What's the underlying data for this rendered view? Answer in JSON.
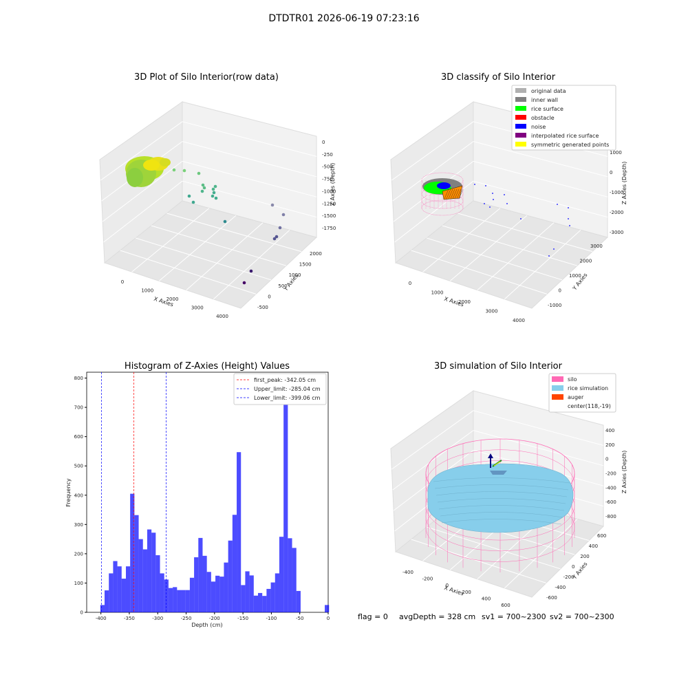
{
  "figure": {
    "suptitle": "DTDTR01 2026-06-19 07:23:16",
    "footer": {
      "flag": "flag = 0",
      "avg_depth": "avgDepth = 328 cm",
      "sv1": "sv1 = 700~2300",
      "sv2": "sv2 = 700~2300"
    }
  },
  "panel_raw": {
    "title": "3D Plot of Silo Interior(row data)",
    "xlabel": "X Axies",
    "ylabel": "Y Axies",
    "zlabel": "Z Axies (Depth)",
    "xticks": [
      "0",
      "1000",
      "2000",
      "3000",
      "4000"
    ],
    "yticks": [
      "-500",
      "0",
      "500",
      "1000",
      "1500",
      "2000"
    ],
    "zticks": [
      "0",
      "-250",
      "-500",
      "-750",
      "-1000",
      "-1250",
      "-1500",
      "-1750"
    ]
  },
  "panel_classify": {
    "title": "3D classify of Silo Interior",
    "xlabel": "X Axies",
    "ylabel": "Y Axies",
    "zlabel": "Z Axies (Depth)",
    "xticks": [
      "0",
      "1000",
      "2000",
      "3000",
      "4000"
    ],
    "yticks": [
      "-1000",
      "0",
      "1000",
      "2000",
      "3000"
    ],
    "zticks": [
      "1000",
      "0",
      "-1000",
      "-2000",
      "-3000"
    ],
    "legend": [
      {
        "label": "original data",
        "color": "#b0b0b0"
      },
      {
        "label": "inner wall",
        "color": "#808080"
      },
      {
        "label": "rice surface",
        "color": "#00ff00"
      },
      {
        "label": "obstacle",
        "color": "#ff0000"
      },
      {
        "label": "noise",
        "color": "#0000ff"
      },
      {
        "label": "interpolated rice surface",
        "color": "#800080"
      },
      {
        "label": "symmetric generated points",
        "color": "#ffff00"
      }
    ]
  },
  "panel_sim": {
    "title": "3D simulation of Silo Interior",
    "xlabel": "X Axies",
    "ylabel": "Y Axies",
    "zlabel": "Z Axies (Depth)",
    "xticks": [
      "-400",
      "-200",
      "0",
      "200",
      "400",
      "600"
    ],
    "yticks": [
      "-600",
      "-400",
      "-200",
      "0",
      "200",
      "400",
      "600"
    ],
    "zticks": [
      "400",
      "200",
      "0",
      "-200",
      "-400",
      "-600",
      "-800"
    ],
    "legend": [
      {
        "label": "silo",
        "color": "#ff69b4"
      },
      {
        "label": "rice simulation",
        "color": "#87ceeb"
      },
      {
        "label": "auger",
        "color": "#ff4500"
      },
      {
        "label": "center(118,-19)",
        "color": ""
      }
    ]
  },
  "chart_data": {
    "type": "bar",
    "title": "Histogram of Z-Axies (Height) Values",
    "xlabel": "Depth (cm)",
    "ylabel": "Frequency",
    "xlim": [
      -425,
      0
    ],
    "ylim": [
      0,
      820
    ],
    "xticks": [
      -400,
      -350,
      -300,
      -250,
      -200,
      -150,
      -100,
      -50,
      0
    ],
    "yticks": [
      0,
      100,
      200,
      300,
      400,
      500,
      600,
      700,
      800
    ],
    "bar_color": "#0000ff",
    "bin_width": 7.5,
    "bins": [
      [
        -401,
        25
      ],
      [
        -393.5,
        75
      ],
      [
        -386,
        133
      ],
      [
        -378.5,
        175
      ],
      [
        -371,
        157
      ],
      [
        -363.5,
        115
      ],
      [
        -356,
        157
      ],
      [
        -348.5,
        405
      ],
      [
        -341,
        332
      ],
      [
        -333.5,
        250
      ],
      [
        -326,
        215
      ],
      [
        -318.5,
        283
      ],
      [
        -311,
        272
      ],
      [
        -303.5,
        195
      ],
      [
        -296,
        133
      ],
      [
        -288.5,
        112
      ],
      [
        -281,
        83
      ],
      [
        -273.5,
        86
      ],
      [
        -266,
        76
      ],
      [
        -258.5,
        76
      ],
      [
        -251,
        76
      ],
      [
        -243.5,
        118
      ],
      [
        -236,
        188
      ],
      [
        -228.5,
        254
      ],
      [
        -221,
        193
      ],
      [
        -213.5,
        138
      ],
      [
        -206,
        105
      ],
      [
        -198.5,
        125
      ],
      [
        -191,
        122
      ],
      [
        -183.5,
        170
      ],
      [
        -176,
        245
      ],
      [
        -168.5,
        333
      ],
      [
        -161,
        547
      ],
      [
        -153.5,
        93
      ],
      [
        -146,
        140
      ],
      [
        -138.5,
        126
      ],
      [
        -131,
        57
      ],
      [
        -123.5,
        66
      ],
      [
        -116,
        56
      ],
      [
        -108.5,
        80
      ],
      [
        -101,
        102
      ],
      [
        -93.5,
        133
      ],
      [
        -86,
        258
      ],
      [
        -78.5,
        780
      ],
      [
        -71,
        253
      ],
      [
        -63.5,
        220
      ],
      [
        -56,
        73
      ],
      [
        -48.5,
        0
      ],
      [
        -41,
        0
      ],
      [
        -6,
        25
      ]
    ],
    "lines": [
      {
        "x": -342.05,
        "color": "#ff0000",
        "label": "first_peak: -342.05 cm"
      },
      {
        "x": -285.04,
        "color": "#0000ff",
        "label": "Upper_limit: -285.04 cm"
      },
      {
        "x": -399.06,
        "color": "#0000ff",
        "label": "Lower_limit: -399.06 cm"
      }
    ],
    "legend_position": "top-right"
  }
}
